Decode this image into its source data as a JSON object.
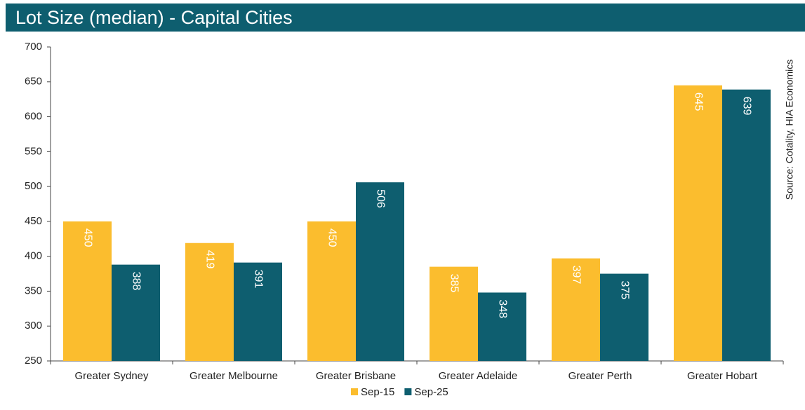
{
  "chart_data": {
    "type": "bar",
    "title": "Lot Size (median) - Capital Cities",
    "source": "Source: Cotality, HIA Economics",
    "categories": [
      "Greater Sydney",
      "Greater Melbourne",
      "Greater Brisbane",
      "Greater Adelaide",
      "Greater Perth",
      "Greater Hobart"
    ],
    "series": [
      {
        "name": "Sep-15",
        "color": "#fbbd2e",
        "values": [
          450,
          419,
          450,
          385,
          397,
          645
        ]
      },
      {
        "name": "Sep-25",
        "color": "#0e5e6f",
        "values": [
          388,
          391,
          506,
          348,
          375,
          639
        ]
      }
    ],
    "ylim": [
      250,
      700
    ],
    "yticks": [
      250,
      300,
      350,
      400,
      450,
      500,
      550,
      600,
      650,
      700
    ],
    "grid": false,
    "legend": "bottom",
    "title_color": "#0e5e6f"
  }
}
